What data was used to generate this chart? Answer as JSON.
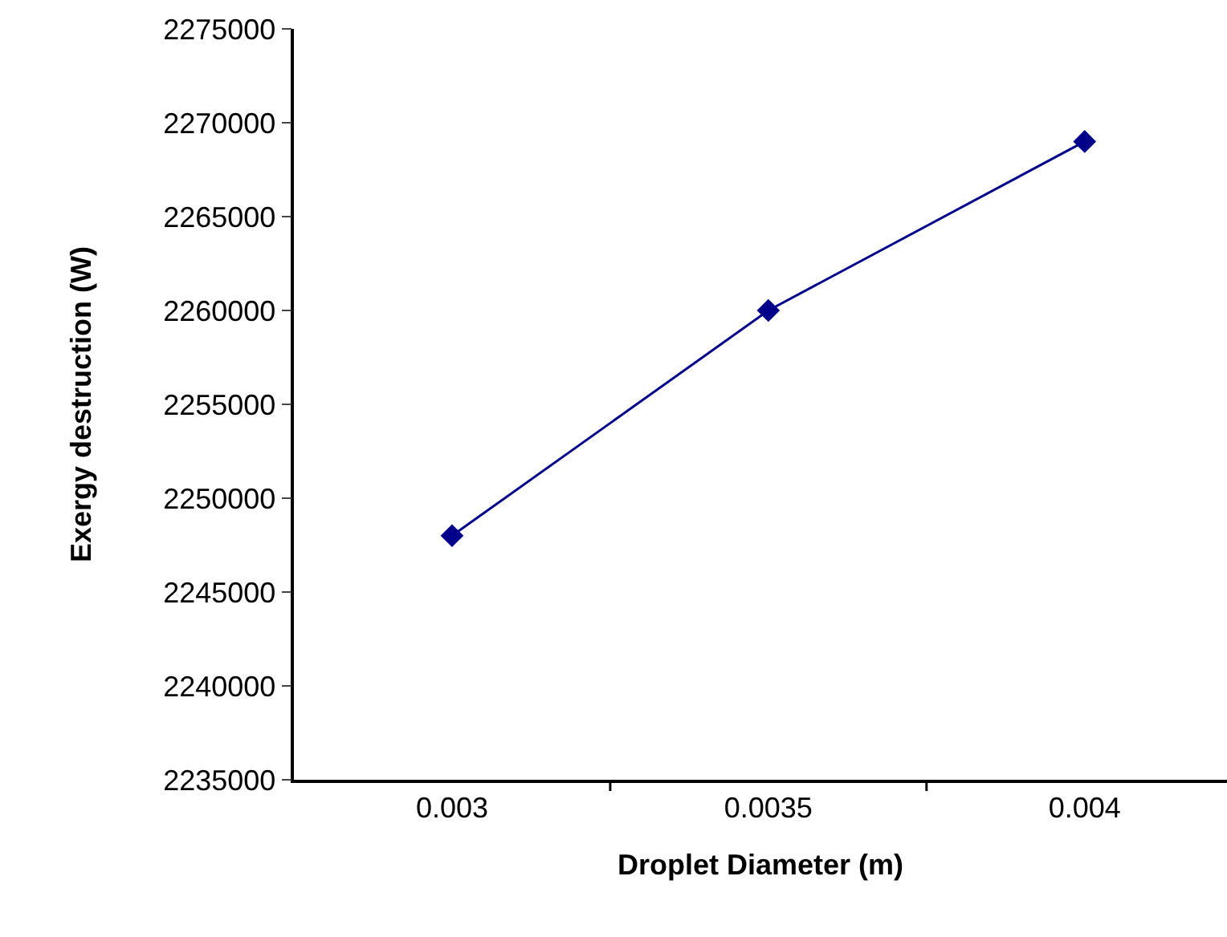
{
  "chart_data": {
    "type": "line",
    "xlabel": "Droplet Diameter (m)",
    "ylabel": "Exergy destruction (W)",
    "categories": [
      "0.003",
      "0.0035",
      "0.004"
    ],
    "series": [
      {
        "color": "#00008b",
        "values": [
          2248000,
          2260000,
          2269000
        ]
      }
    ],
    "ylim": [
      2235000,
      2275000
    ],
    "yticks": [
      2235000,
      2240000,
      2245000,
      2250000,
      2255000,
      2260000,
      2265000,
      2270000,
      2275000
    ],
    "marker": "diamond",
    "line_style": "solid"
  }
}
